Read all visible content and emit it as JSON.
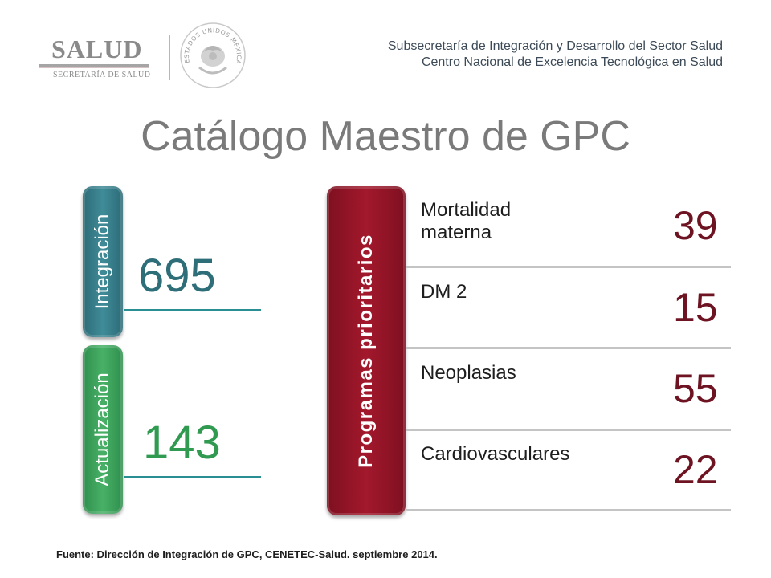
{
  "header": {
    "logo_main": "SALUD",
    "logo_sub": "SECRETARÍA DE SALUD",
    "seal_text": "ESTADOS UNIDOS MEXICANOS",
    "line1": "Subsecretaría de Integración y Desarrollo del Sector Salud",
    "line2": "Centro Nacional de Excelencia Tecnológica en Salud"
  },
  "title": "Catálogo Maestro de GPC",
  "left_tabs": [
    {
      "label": "Integración",
      "value": "695",
      "color": "#2d6e78"
    },
    {
      "label": "Actualización",
      "value": "143",
      "color": "#2f9a50"
    }
  ],
  "programs": {
    "tab_label": "Programas prioritarios",
    "tab_color": "#9a1628",
    "rows": [
      {
        "label": "Mortalidad materna",
        "value": "39"
      },
      {
        "label": "DM 2",
        "value": "15"
      },
      {
        "label": "Neoplasias",
        "value": "55"
      },
      {
        "label": "Cardiovasculares",
        "value": "22"
      }
    ]
  },
  "footer": "Fuente: Dirección de Integración de GPC, CENETEC-Salud.  septiembre 2014."
}
